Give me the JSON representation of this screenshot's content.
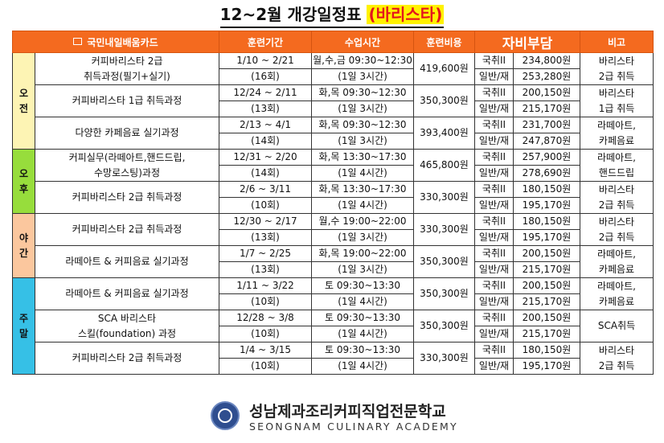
{
  "title": {
    "main": "12~2월 개강일정표",
    "highlight": "(바리스타)"
  },
  "headers": {
    "card": "국민내일배움카드",
    "period": "훈련기간",
    "time": "수업시간",
    "fee": "훈련비용",
    "self_pay": "자비부담",
    "note": "비고"
  },
  "groups": [
    {
      "label": [
        "오",
        "전"
      ],
      "class": "p-morning",
      "courses": [
        {
          "name": [
            "커피바리스타 2급",
            "취득과정(필기+실기)"
          ],
          "dates": "1/10 ~ 2/21",
          "sessions": "(16회)",
          "time": "월,수,금 09:30~12:30",
          "hours": "(1일 3시간)",
          "fee": "419,600원",
          "cat1": "국취II",
          "pay1": "234,800원",
          "cat2": "일반/재",
          "pay2": "253,280원",
          "note": [
            "바리스타",
            "2급 취득"
          ]
        },
        {
          "name": [
            "커피바리스타 1급 취득과정"
          ],
          "dates": "12/24 ~ 2/11",
          "sessions": "(13회)",
          "time": "화,목 09:30~12:30",
          "hours": "(1일 3시간)",
          "fee": "350,300원",
          "cat1": "국취II",
          "pay1": "200,150원",
          "cat2": "일반/재",
          "pay2": "215,170원",
          "note": [
            "바리스타",
            "1급 취득"
          ]
        },
        {
          "name": [
            "다양한 카페음료 실기과정"
          ],
          "dates": "2/13 ~ 4/1",
          "sessions": "(14회)",
          "time": "화,목 09:30~12:30",
          "hours": "(1일 3시간)",
          "fee": "393,400원",
          "cat1": "국취II",
          "pay1": "231,700원",
          "cat2": "일반/재",
          "pay2": "247,870원",
          "note": [
            "라떼아트,",
            "카페음료"
          ]
        }
      ]
    },
    {
      "label": [
        "오",
        "후"
      ],
      "class": "p-afternoon",
      "courses": [
        {
          "name": [
            "커피실무(라떼아트,핸드드립,",
            "수망로스팅)과정"
          ],
          "dates": "12/31 ~ 2/20",
          "sessions": "(14회)",
          "time": "화,목 13:30~17:30",
          "hours": "(1일 4시간)",
          "fee": "465,800원",
          "cat1": "국취II",
          "pay1": "257,900원",
          "cat2": "일반/재",
          "pay2": "278,690원",
          "note": [
            "라떼아트,",
            "핸드드립"
          ]
        },
        {
          "name": [
            "커피바리스타 2급 취득과정"
          ],
          "dates": "2/6 ~ 3/11",
          "sessions": "(10회)",
          "time": "화,목 13:30~17:30",
          "hours": "(1일 4시간)",
          "fee": "330,300원",
          "cat1": "국취II",
          "pay1": "180,150원",
          "cat2": "일반/재",
          "pay2": "195,170원",
          "note": [
            "바리스타",
            "2급 취득"
          ]
        }
      ]
    },
    {
      "label": [
        "야",
        "간"
      ],
      "class": "p-evening",
      "courses": [
        {
          "name": [
            "커피바리스타 2급 취득과정"
          ],
          "dates": "12/30 ~ 2/17",
          "sessions": "(13회)",
          "time": "월,수 19:00~22:00",
          "hours": "(1일 3시간)",
          "fee": "330,300원",
          "cat1": "국취II",
          "pay1": "180,150원",
          "cat2": "일반/재",
          "pay2": "195,170원",
          "note": [
            "바리스타",
            "2급 취득"
          ]
        },
        {
          "name": [
            "라떼아트 & 커피음료 실기과정"
          ],
          "dates": "1/7 ~ 2/25",
          "sessions": "(13회)",
          "time": "화,목 19:00~22:00",
          "hours": "(1일 3시간)",
          "fee": "350,300원",
          "cat1": "국취II",
          "pay1": "200,150원",
          "cat2": "일반/재",
          "pay2": "215,170원",
          "note": [
            "라떼아트,",
            "카페음료"
          ]
        }
      ]
    },
    {
      "label": [
        "주",
        "말"
      ],
      "class": "p-weekend",
      "courses": [
        {
          "name": [
            "라떼아트 & 커피음료 실기과정"
          ],
          "dates": "1/11 ~ 3/22",
          "sessions": "(10회)",
          "time": "토 09:30~13:30",
          "hours": "(1일 4시간)",
          "fee": "350,300원",
          "cat1": "국취II",
          "pay1": "200,150원",
          "cat2": "일반/재",
          "pay2": "215,170원",
          "note": [
            "라떼아트,",
            "카페음료"
          ]
        },
        {
          "name": [
            "SCA 바리스타",
            "스킬(foundation) 과정"
          ],
          "dates": "12/28 ~ 3/8",
          "sessions": "(10회)",
          "time": "토 09:30~13:30",
          "hours": "(1일 4시간)",
          "fee": "350,300원",
          "cat1": "국취II",
          "pay1": "200,150원",
          "cat2": "일반/재",
          "pay2": "215,170원",
          "note": [
            "SCA취득"
          ]
        },
        {
          "name": [
            "커피바리스타 2급 취득과정"
          ],
          "dates": "1/4 ~ 3/15",
          "sessions": "(10회)",
          "time": "토 09:30~13:30",
          "hours": "(1일 4시간)",
          "fee": "330,300원",
          "cat1": "국취II",
          "pay1": "180,150원",
          "cat2": "일반/재",
          "pay2": "195,170원",
          "note": [
            "바리스타",
            "2급 취득"
          ]
        }
      ]
    }
  ],
  "footer": {
    "school_ko": "성남제과조리커피직업전문학교",
    "school_en": "SEONGNAM CULINARY ACADEMY"
  },
  "colors": {
    "header": "#f46a1f",
    "title_highlight_text": "#e4161d",
    "title_highlight_bg": "#fff200",
    "morning": "#fdf4b4",
    "afternoon": "#97dd3c",
    "evening": "#fbc79e",
    "weekend": "#36c0e6"
  },
  "icons": {
    "card": "card-icon",
    "logo": "school-logo-icon"
  }
}
